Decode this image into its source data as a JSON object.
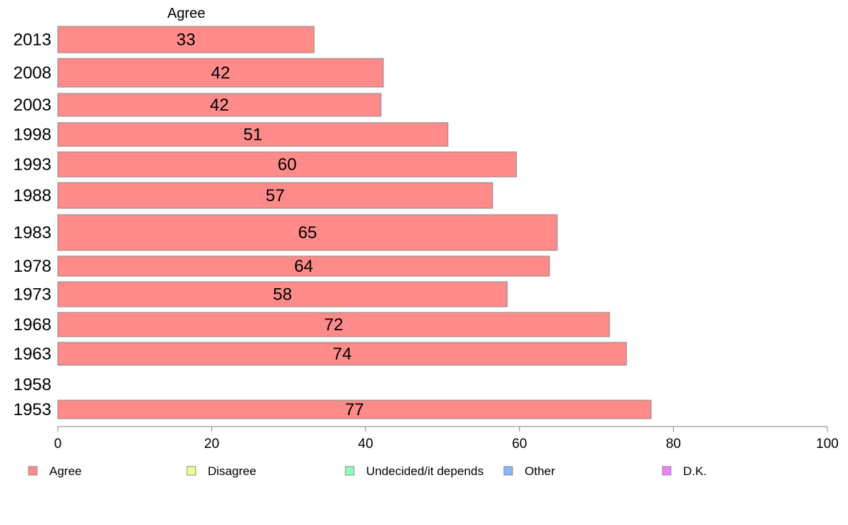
{
  "chart_data": {
    "type": "bar",
    "orientation": "horizontal",
    "column_header": "Agree",
    "categories": [
      "2013",
      "2008",
      "2003",
      "1998",
      "1993",
      "1988",
      "1983",
      "1978",
      "1973",
      "1968",
      "1963",
      "1958",
      "1953"
    ],
    "series": [
      {
        "name": "Agree",
        "values": [
          33.3,
          42.3,
          42.0,
          50.7,
          59.6,
          56.5,
          64.9,
          63.9,
          58.4,
          71.7,
          73.9,
          null,
          77.1
        ],
        "labels": [
          "33",
          "42",
          "42",
          "51",
          "60",
          "57",
          "65",
          "64",
          "58",
          "72",
          "74",
          "",
          "77"
        ],
        "color": "#ff8a8a"
      }
    ],
    "xlim": [
      0,
      100
    ],
    "xticks": [
      0,
      20,
      40,
      60,
      80,
      100
    ],
    "grid": false,
    "legend": {
      "placement": "bottom",
      "items": [
        {
          "label": "Agree",
          "color": "#ff8a8a"
        },
        {
          "label": "Disagree",
          "color": "#f0ff8a"
        },
        {
          "label": "Undecided/it depends",
          "color": "#8affbe"
        },
        {
          "label": "Other",
          "color": "#8ab4ff"
        },
        {
          "label": "D.K.",
          "color": "#ef82f5"
        }
      ]
    }
  }
}
